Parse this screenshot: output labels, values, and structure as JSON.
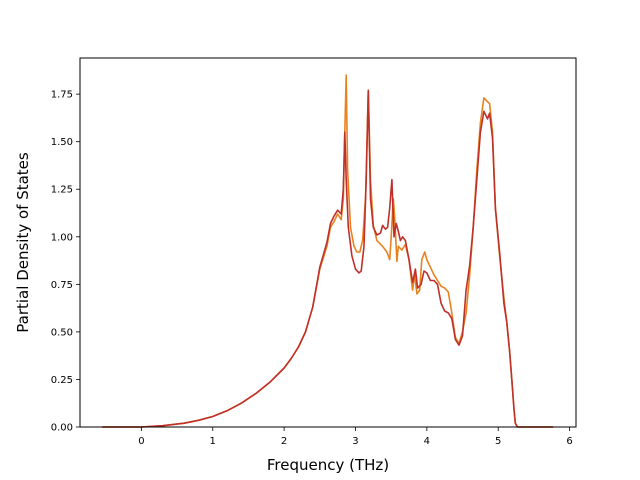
{
  "chart_data": {
    "type": "line",
    "title": "",
    "xlabel": "Frequency (THz)",
    "ylabel": "Partial Density of States",
    "xlim": [
      -0.86,
      6.09
    ],
    "ylim": [
      0,
      1.94
    ],
    "xticks": [
      0,
      1,
      2,
      3,
      4,
      5,
      6
    ],
    "yticks": [
      0.0,
      0.25,
      0.5,
      0.75,
      1.0,
      1.25,
      1.5,
      1.75
    ],
    "xtick_labels": [
      "0",
      "1",
      "2",
      "3",
      "4",
      "5",
      "6"
    ],
    "ytick_labels": [
      "0.00",
      "0.25",
      "0.50",
      "0.75",
      "1.00",
      "1.25",
      "1.50",
      "1.75"
    ],
    "grid": false,
    "legend": false,
    "series": [
      {
        "color": "#e8821f",
        "points": [
          [
            -0.55,
            0.0
          ],
          [
            0.0,
            0.0
          ],
          [
            0.3,
            0.007
          ],
          [
            0.6,
            0.02
          ],
          [
            0.8,
            0.035
          ],
          [
            1.0,
            0.055
          ],
          [
            1.2,
            0.085
          ],
          [
            1.4,
            0.125
          ],
          [
            1.6,
            0.175
          ],
          [
            1.8,
            0.235
          ],
          [
            2.0,
            0.31
          ],
          [
            2.1,
            0.36
          ],
          [
            2.2,
            0.42
          ],
          [
            2.3,
            0.5
          ],
          [
            2.4,
            0.63
          ],
          [
            2.5,
            0.83
          ],
          [
            2.6,
            0.95
          ],
          [
            2.65,
            1.05
          ],
          [
            2.7,
            1.08
          ],
          [
            2.75,
            1.12
          ],
          [
            2.8,
            1.09
          ],
          [
            2.83,
            1.2
          ],
          [
            2.85,
            1.55
          ],
          [
            2.87,
            1.85
          ],
          [
            2.89,
            1.35
          ],
          [
            2.93,
            1.05
          ],
          [
            2.98,
            0.95
          ],
          [
            3.02,
            0.92
          ],
          [
            3.06,
            0.92
          ],
          [
            3.1,
            0.98
          ],
          [
            3.14,
            1.2
          ],
          [
            3.18,
            1.77
          ],
          [
            3.21,
            1.3
          ],
          [
            3.25,
            1.06
          ],
          [
            3.3,
            0.98
          ],
          [
            3.38,
            0.95
          ],
          [
            3.44,
            0.92
          ],
          [
            3.48,
            0.88
          ],
          [
            3.5,
            1.0
          ],
          [
            3.53,
            1.2
          ],
          [
            3.55,
            1.1
          ],
          [
            3.58,
            0.87
          ],
          [
            3.6,
            0.95
          ],
          [
            3.65,
            0.93
          ],
          [
            3.7,
            0.96
          ],
          [
            3.75,
            0.88
          ],
          [
            3.8,
            0.72
          ],
          [
            3.83,
            0.8
          ],
          [
            3.86,
            0.7
          ],
          [
            3.9,
            0.72
          ],
          [
            3.93,
            0.88
          ],
          [
            3.97,
            0.92
          ],
          [
            4.0,
            0.88
          ],
          [
            4.05,
            0.84
          ],
          [
            4.1,
            0.8
          ],
          [
            4.15,
            0.77
          ],
          [
            4.2,
            0.74
          ],
          [
            4.25,
            0.73
          ],
          [
            4.3,
            0.71
          ],
          [
            4.35,
            0.6
          ],
          [
            4.4,
            0.47
          ],
          [
            4.45,
            0.44
          ],
          [
            4.5,
            0.5
          ],
          [
            4.55,
            0.6
          ],
          [
            4.6,
            0.8
          ],
          [
            4.65,
            1.05
          ],
          [
            4.7,
            1.35
          ],
          [
            4.75,
            1.6
          ],
          [
            4.8,
            1.73
          ],
          [
            4.85,
            1.71
          ],
          [
            4.88,
            1.7
          ],
          [
            4.92,
            1.55
          ],
          [
            4.96,
            1.15
          ],
          [
            5.02,
            0.9
          ],
          [
            5.08,
            0.68
          ],
          [
            5.12,
            0.55
          ],
          [
            5.16,
            0.4
          ],
          [
            5.19,
            0.25
          ],
          [
            5.22,
            0.1
          ],
          [
            5.24,
            0.02
          ],
          [
            5.27,
            0.0
          ],
          [
            5.77,
            0.0
          ]
        ]
      },
      {
        "color": "#c0302a",
        "points": [
          [
            -0.55,
            0.0
          ],
          [
            0.0,
            0.0
          ],
          [
            0.3,
            0.007
          ],
          [
            0.6,
            0.02
          ],
          [
            0.8,
            0.035
          ],
          [
            1.0,
            0.055
          ],
          [
            1.2,
            0.085
          ],
          [
            1.4,
            0.125
          ],
          [
            1.6,
            0.175
          ],
          [
            1.8,
            0.235
          ],
          [
            2.0,
            0.31
          ],
          [
            2.1,
            0.36
          ],
          [
            2.2,
            0.42
          ],
          [
            2.3,
            0.5
          ],
          [
            2.4,
            0.63
          ],
          [
            2.5,
            0.84
          ],
          [
            2.6,
            0.97
          ],
          [
            2.65,
            1.07
          ],
          [
            2.7,
            1.11
          ],
          [
            2.75,
            1.14
          ],
          [
            2.8,
            1.12
          ],
          [
            2.83,
            1.25
          ],
          [
            2.85,
            1.55
          ],
          [
            2.87,
            1.3
          ],
          [
            2.9,
            1.05
          ],
          [
            2.95,
            0.9
          ],
          [
            3.0,
            0.83
          ],
          [
            3.05,
            0.81
          ],
          [
            3.08,
            0.82
          ],
          [
            3.12,
            0.95
          ],
          [
            3.15,
            1.3
          ],
          [
            3.18,
            1.77
          ],
          [
            3.21,
            1.2
          ],
          [
            3.25,
            1.05
          ],
          [
            3.3,
            1.01
          ],
          [
            3.35,
            1.02
          ],
          [
            3.38,
            1.06
          ],
          [
            3.42,
            1.04
          ],
          [
            3.45,
            1.05
          ],
          [
            3.48,
            1.15
          ],
          [
            3.51,
            1.3
          ],
          [
            3.54,
            1.0
          ],
          [
            3.57,
            1.07
          ],
          [
            3.6,
            1.03
          ],
          [
            3.63,
            0.98
          ],
          [
            3.66,
            1.0
          ],
          [
            3.7,
            0.98
          ],
          [
            3.75,
            0.88
          ],
          [
            3.8,
            0.76
          ],
          [
            3.84,
            0.83
          ],
          [
            3.87,
            0.73
          ],
          [
            3.92,
            0.75
          ],
          [
            3.96,
            0.82
          ],
          [
            4.0,
            0.81
          ],
          [
            4.05,
            0.77
          ],
          [
            4.1,
            0.77
          ],
          [
            4.15,
            0.75
          ],
          [
            4.2,
            0.65
          ],
          [
            4.25,
            0.61
          ],
          [
            4.3,
            0.6
          ],
          [
            4.35,
            0.57
          ],
          [
            4.4,
            0.46
          ],
          [
            4.45,
            0.43
          ],
          [
            4.5,
            0.48
          ],
          [
            4.55,
            0.72
          ],
          [
            4.6,
            0.85
          ],
          [
            4.65,
            1.05
          ],
          [
            4.7,
            1.3
          ],
          [
            4.75,
            1.55
          ],
          [
            4.8,
            1.66
          ],
          [
            4.85,
            1.62
          ],
          [
            4.88,
            1.65
          ],
          [
            4.92,
            1.52
          ],
          [
            4.96,
            1.15
          ],
          [
            5.02,
            0.92
          ],
          [
            5.08,
            0.65
          ],
          [
            5.12,
            0.55
          ],
          [
            5.16,
            0.4
          ],
          [
            5.19,
            0.25
          ],
          [
            5.22,
            0.1
          ],
          [
            5.24,
            0.02
          ],
          [
            5.27,
            0.0
          ],
          [
            5.77,
            0.0
          ]
        ]
      }
    ]
  }
}
